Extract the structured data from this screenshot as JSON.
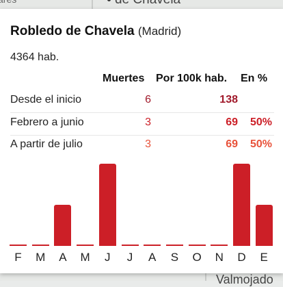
{
  "map": {
    "top_label": "de Chavela",
    "top_left_label": "ares",
    "bottom_label": "Valmojado"
  },
  "card": {
    "title": "Robledo de Chavela",
    "region": "(Madrid)",
    "population": "4364 hab."
  },
  "table": {
    "headers": {
      "deaths": "Muertes",
      "per100k": "Por 100k hab.",
      "percent": "En %"
    },
    "rows": [
      {
        "label": "Desde el inicio",
        "deaths": "6",
        "per100k": "138",
        "percent": ""
      },
      {
        "label": "Febrero a junio",
        "deaths": "3",
        "per100k": "69",
        "percent": "50%"
      },
      {
        "label": "A partir de julio",
        "deaths": "3",
        "per100k": "69",
        "percent": "50%"
      }
    ]
  },
  "colors": {
    "dark_red": "#a11a2b",
    "red": "#cc1f27",
    "orange_red": "#e8523a",
    "bar": "#cc1f27"
  },
  "chart_data": {
    "type": "bar",
    "categories": [
      "F",
      "M",
      "A",
      "M",
      "J",
      "J",
      "A",
      "S",
      "O",
      "N",
      "D",
      "E"
    ],
    "values": [
      0,
      0,
      1,
      0,
      2,
      0,
      0,
      0,
      0,
      0,
      2,
      1
    ],
    "ylim": [
      0,
      2
    ],
    "title": "",
    "xlabel": "",
    "ylabel": ""
  }
}
